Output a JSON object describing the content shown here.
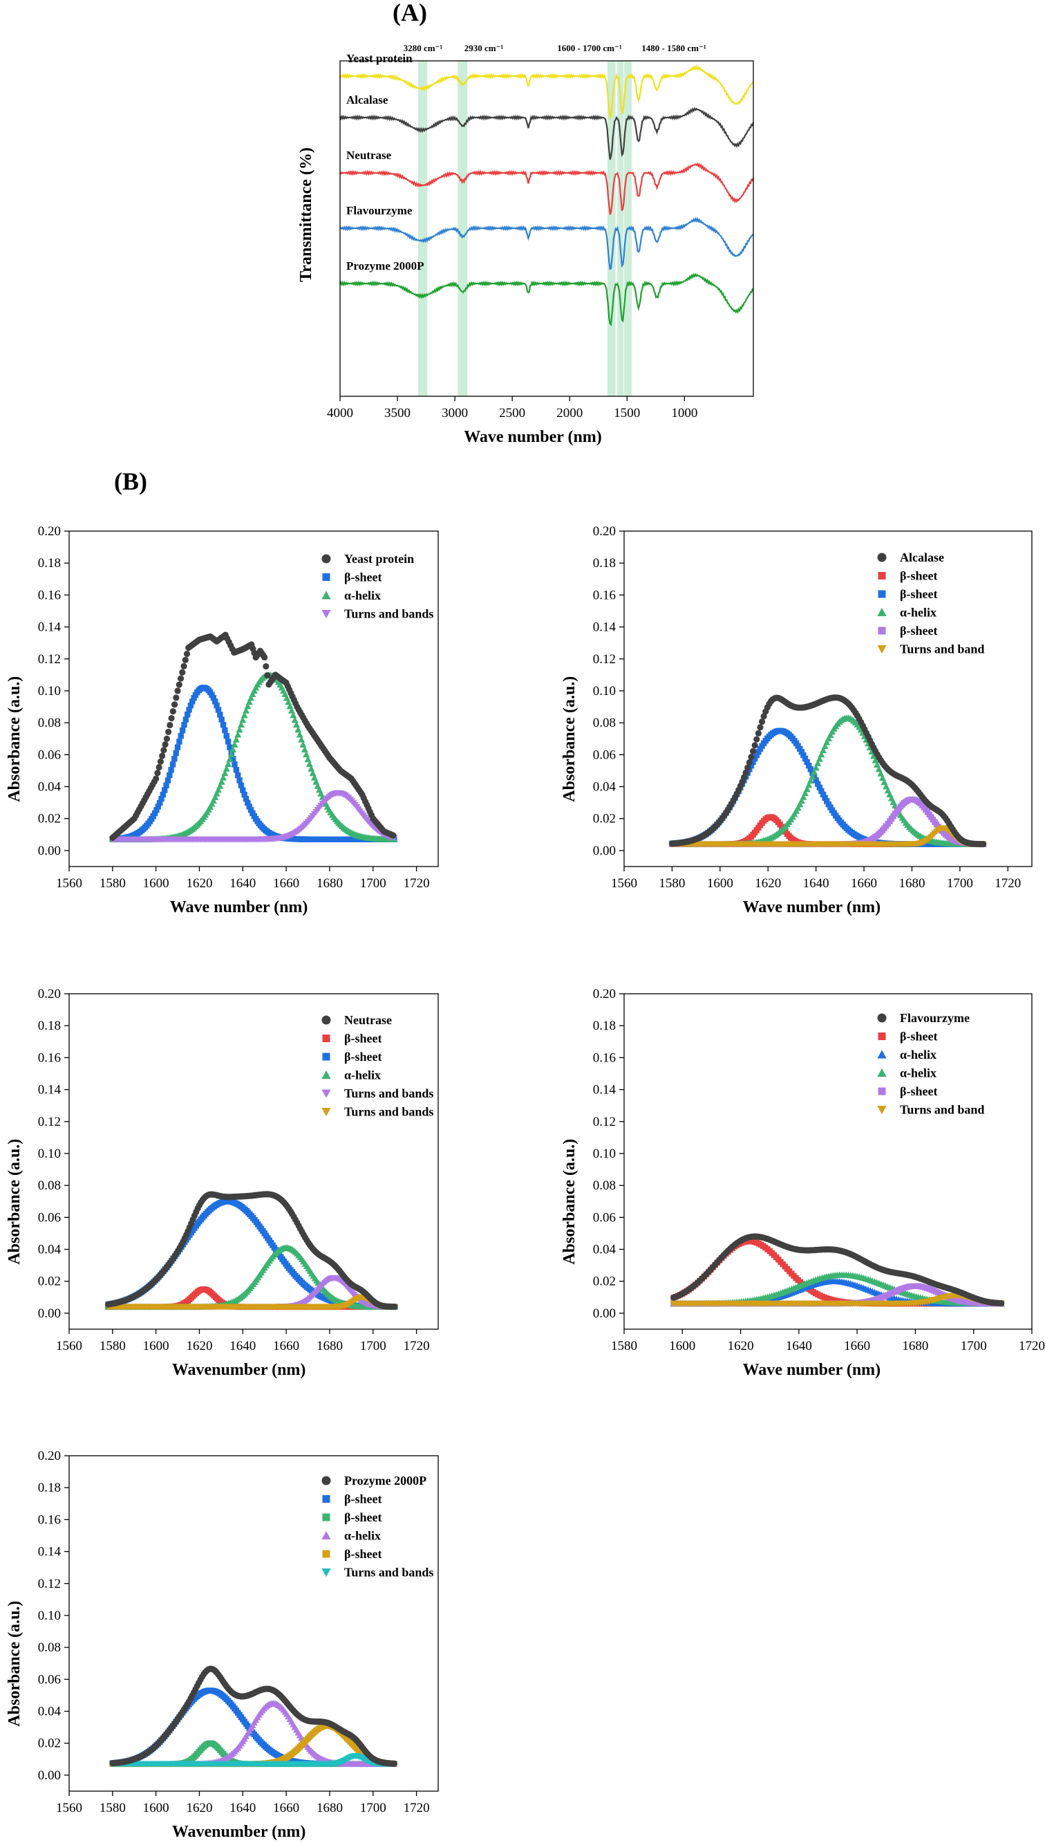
{
  "figure": {
    "label_a": "(A)",
    "label_b": "(B)"
  },
  "chart_data": [
    {
      "id": "A",
      "type": "line",
      "title": "",
      "xlabel": "Wave number (nm)",
      "ylabel": "Transmittance (%)",
      "xlim": [
        4000,
        400
      ],
      "xticks": [
        "4000",
        "3500",
        "3000",
        "2500",
        "2000",
        "1500",
        "1000"
      ],
      "x_tick_values": [
        4000,
        3500,
        3000,
        2500,
        2000,
        1500,
        1000
      ],
      "bands": [
        {
          "label": "3280 cm⁻¹",
          "from": 3320,
          "to": 3240
        },
        {
          "label": "2930 cm⁻¹",
          "from": 2975,
          "to": 2890
        },
        {
          "label": "1600 - 1700 cm⁻¹",
          "from": 1670,
          "to": 1600
        },
        {
          "label": "",
          "from": 1585,
          "to": 1530
        },
        {
          "label": "1480 - 1580 cm⁻¹",
          "from": 1525,
          "to": 1460
        }
      ],
      "series": [
        {
          "name": "Yeast protein",
          "color": "#f0e020"
        },
        {
          "name": "Alcalase",
          "color": "#404040"
        },
        {
          "name": "Neutrase",
          "color": "#e84040"
        },
        {
          "name": "Flavourzyme",
          "color": "#3080d0"
        },
        {
          "name": "Prozyme 2000P",
          "color": "#20a030"
        }
      ]
    },
    {
      "id": "B1",
      "type": "scatter",
      "xlabel": "Wave number (nm)",
      "ylabel": "Absorbance (a.u.)",
      "xlim": [
        1560,
        1730
      ],
      "ylim": [
        -0.01,
        0.2
      ],
      "xticks": [
        "1560",
        "1580",
        "1600",
        "1620",
        "1640",
        "1660",
        "1680",
        "1700",
        "1720"
      ],
      "yticks": [
        "0.00",
        "0.02",
        "0.04",
        "0.06",
        "0.08",
        "0.10",
        "0.12",
        "0.14",
        "0.16",
        "0.18",
        "0.20"
      ],
      "fit_range": [
        1580,
        1710
      ],
      "baseline": 0.007,
      "total_points": [
        [
          1580,
          0.008
        ],
        [
          1590,
          0.02
        ],
        [
          1600,
          0.045
        ],
        [
          1605,
          0.07
        ],
        [
          1610,
          0.1
        ],
        [
          1615,
          0.127
        ],
        [
          1620,
          0.132
        ],
        [
          1625,
          0.134
        ],
        [
          1628,
          0.131
        ],
        [
          1632,
          0.135
        ],
        [
          1636,
          0.124
        ],
        [
          1640,
          0.126
        ],
        [
          1644,
          0.129
        ],
        [
          1646,
          0.121
        ],
        [
          1648,
          0.125
        ],
        [
          1650,
          0.121
        ],
        [
          1652,
          0.104
        ],
        [
          1655,
          0.11
        ],
        [
          1660,
          0.105
        ],
        [
          1665,
          0.09
        ],
        [
          1670,
          0.078
        ],
        [
          1675,
          0.068
        ],
        [
          1680,
          0.058
        ],
        [
          1685,
          0.05
        ],
        [
          1690,
          0.045
        ],
        [
          1695,
          0.035
        ],
        [
          1700,
          0.02
        ],
        [
          1705,
          0.012
        ],
        [
          1710,
          0.009
        ]
      ],
      "series": [
        {
          "name": "Yeast protein",
          "marker": "circle",
          "color": "#404040",
          "role": "total"
        },
        {
          "name": "β-sheet",
          "marker": "square",
          "color": "#1f6fe0",
          "center": 1622,
          "amp": 0.095,
          "sigma": 12
        },
        {
          "name": "α-helix",
          "marker": "triangle-up",
          "color": "#3cb371",
          "center": 1652,
          "amp": 0.103,
          "sigma": 15
        },
        {
          "name": "Turns and bands",
          "marker": "triangle-down",
          "color": "#b07ae6",
          "center": 1684,
          "amp": 0.029,
          "sigma": 10
        }
      ]
    },
    {
      "id": "B2",
      "type": "scatter",
      "xlabel": "Wave number (nm)",
      "ylabel": "Absorbance (a.u.)",
      "xlim": [
        1560,
        1730
      ],
      "ylim": [
        -0.01,
        0.2
      ],
      "xticks": [
        "1560",
        "1580",
        "1600",
        "1620",
        "1640",
        "1660",
        "1680",
        "1700",
        "1720"
      ],
      "yticks": [
        "0.00",
        "0.02",
        "0.04",
        "0.06",
        "0.08",
        "0.10",
        "0.12",
        "0.14",
        "0.16",
        "0.18",
        "0.20"
      ],
      "fit_range": [
        1580,
        1710
      ],
      "baseline": 0.004,
      "series": [
        {
          "name": "Alcalase",
          "marker": "circle",
          "color": "#404040",
          "role": "total"
        },
        {
          "name": "β-sheet",
          "marker": "square",
          "color": "#e84040",
          "center": 1621,
          "amp": 0.017,
          "sigma": 5
        },
        {
          "name": "β-sheet",
          "marker": "square",
          "color": "#1f6fe0",
          "center": 1625,
          "amp": 0.071,
          "sigma": 14
        },
        {
          "name": "α-helix",
          "marker": "triangle-up",
          "color": "#3cb371",
          "center": 1653,
          "amp": 0.079,
          "sigma": 13
        },
        {
          "name": "β-sheet",
          "marker": "square",
          "color": "#b07ae6",
          "center": 1680,
          "amp": 0.028,
          "sigma": 8
        },
        {
          "name": "Turns and band",
          "marker": "triangle-down",
          "color": "#d4a017",
          "center": 1693,
          "amp": 0.01,
          "sigma": 4
        }
      ]
    },
    {
      "id": "B3",
      "type": "scatter",
      "xlabel": "Wavenumber (nm)",
      "ylabel": "Absorbance (a.u.)",
      "xlim": [
        1560,
        1730
      ],
      "ylim": [
        -0.01,
        0.2
      ],
      "xticks": [
        "1560",
        "1580",
        "1600",
        "1620",
        "1640",
        "1660",
        "1680",
        "1700",
        "1720"
      ],
      "yticks": [
        "0.00",
        "0.02",
        "0.04",
        "0.06",
        "0.08",
        "0.10",
        "0.12",
        "0.14",
        "0.16",
        "0.18",
        "0.20"
      ],
      "fit_range": [
        1578,
        1710
      ],
      "baseline": 0.004,
      "series": [
        {
          "name": "Neutrase",
          "marker": "circle",
          "color": "#404040",
          "role": "total"
        },
        {
          "name": "β-sheet",
          "marker": "square",
          "color": "#e84040",
          "center": 1622,
          "amp": 0.011,
          "sigma": 5
        },
        {
          "name": "β-sheet",
          "marker": "square",
          "color": "#1f6fe0",
          "center": 1633,
          "amp": 0.066,
          "sigma": 20
        },
        {
          "name": "α-helix",
          "marker": "triangle-up",
          "color": "#3cb371",
          "center": 1660,
          "amp": 0.037,
          "sigma": 11
        },
        {
          "name": "Turns and bands",
          "marker": "triangle-down",
          "color": "#b07ae6",
          "center": 1682,
          "amp": 0.018,
          "sigma": 7
        },
        {
          "name": "Turns and bands",
          "marker": "triangle-down",
          "color": "#d4a017",
          "center": 1695,
          "amp": 0.006,
          "sigma": 4
        }
      ]
    },
    {
      "id": "B4",
      "type": "scatter",
      "xlabel": "Wave number (nm)",
      "ylabel": "Absorbance (a.u.)",
      "xlim": [
        1580,
        1720
      ],
      "ylim": [
        -0.01,
        0.2
      ],
      "xticks": [
        "1580",
        "1600",
        "1620",
        "1640",
        "1660",
        "1680",
        "1700",
        "1720"
      ],
      "yticks": [
        "0.00",
        "0.02",
        "0.04",
        "0.06",
        "0.08",
        "0.10",
        "0.12",
        "0.14",
        "0.16",
        "0.18",
        "0.20"
      ],
      "fit_range": [
        1597,
        1710
      ],
      "baseline": 0.006,
      "series": [
        {
          "name": "Flavourzyme",
          "marker": "circle",
          "color": "#404040",
          "role": "total"
        },
        {
          "name": "β-sheet",
          "marker": "square",
          "color": "#e84040",
          "center": 1623,
          "amp": 0.039,
          "sigma": 12
        },
        {
          "name": "α-helix",
          "marker": "triangle-up",
          "color": "#1f6fe0",
          "center": 1652,
          "amp": 0.014,
          "sigma": 12
        },
        {
          "name": "α-helix",
          "marker": "triangle-up",
          "color": "#3cb371",
          "center": 1655,
          "amp": 0.018,
          "sigma": 15
        },
        {
          "name": "β-sheet",
          "marker": "square",
          "color": "#b07ae6",
          "center": 1680,
          "amp": 0.011,
          "sigma": 8
        },
        {
          "name": "Turns and band",
          "marker": "triangle-down",
          "color": "#d4a017",
          "center": 1694,
          "amp": 0.005,
          "sigma": 6
        }
      ]
    },
    {
      "id": "B5",
      "type": "scatter",
      "xlabel": "Wavenumber (nm)",
      "ylabel": "Absorbance (a.u.)",
      "xlim": [
        1560,
        1730
      ],
      "ylim": [
        -0.01,
        0.2
      ],
      "xticks": [
        "1560",
        "1580",
        "1600",
        "1620",
        "1640",
        "1660",
        "1680",
        "1700",
        "1720"
      ],
      "yticks": [
        "0.00",
        "0.02",
        "0.04",
        "0.06",
        "0.08",
        "0.10",
        "0.12",
        "0.14",
        "0.16",
        "0.18",
        "0.20"
      ],
      "fit_range": [
        1580,
        1710
      ],
      "baseline": 0.007,
      "series": [
        {
          "name": "Prozyme 2000P",
          "marker": "circle",
          "color": "#404040",
          "role": "total"
        },
        {
          "name": "β-sheet",
          "marker": "square",
          "color": "#1f6fe0",
          "center": 1625,
          "amp": 0.046,
          "sigma": 15
        },
        {
          "name": "β-sheet",
          "marker": "square",
          "color": "#3cb371",
          "center": 1625,
          "amp": 0.013,
          "sigma": 5
        },
        {
          "name": "α-helix",
          "marker": "triangle-up",
          "color": "#b07ae6",
          "center": 1654,
          "amp": 0.038,
          "sigma": 10
        },
        {
          "name": "β-sheet",
          "marker": "square",
          "color": "#d4a017",
          "center": 1679,
          "amp": 0.024,
          "sigma": 10
        },
        {
          "name": "Turns and bands",
          "marker": "triangle-down",
          "color": "#20c0c0",
          "center": 1692,
          "amp": 0.005,
          "sigma": 4
        }
      ]
    }
  ]
}
